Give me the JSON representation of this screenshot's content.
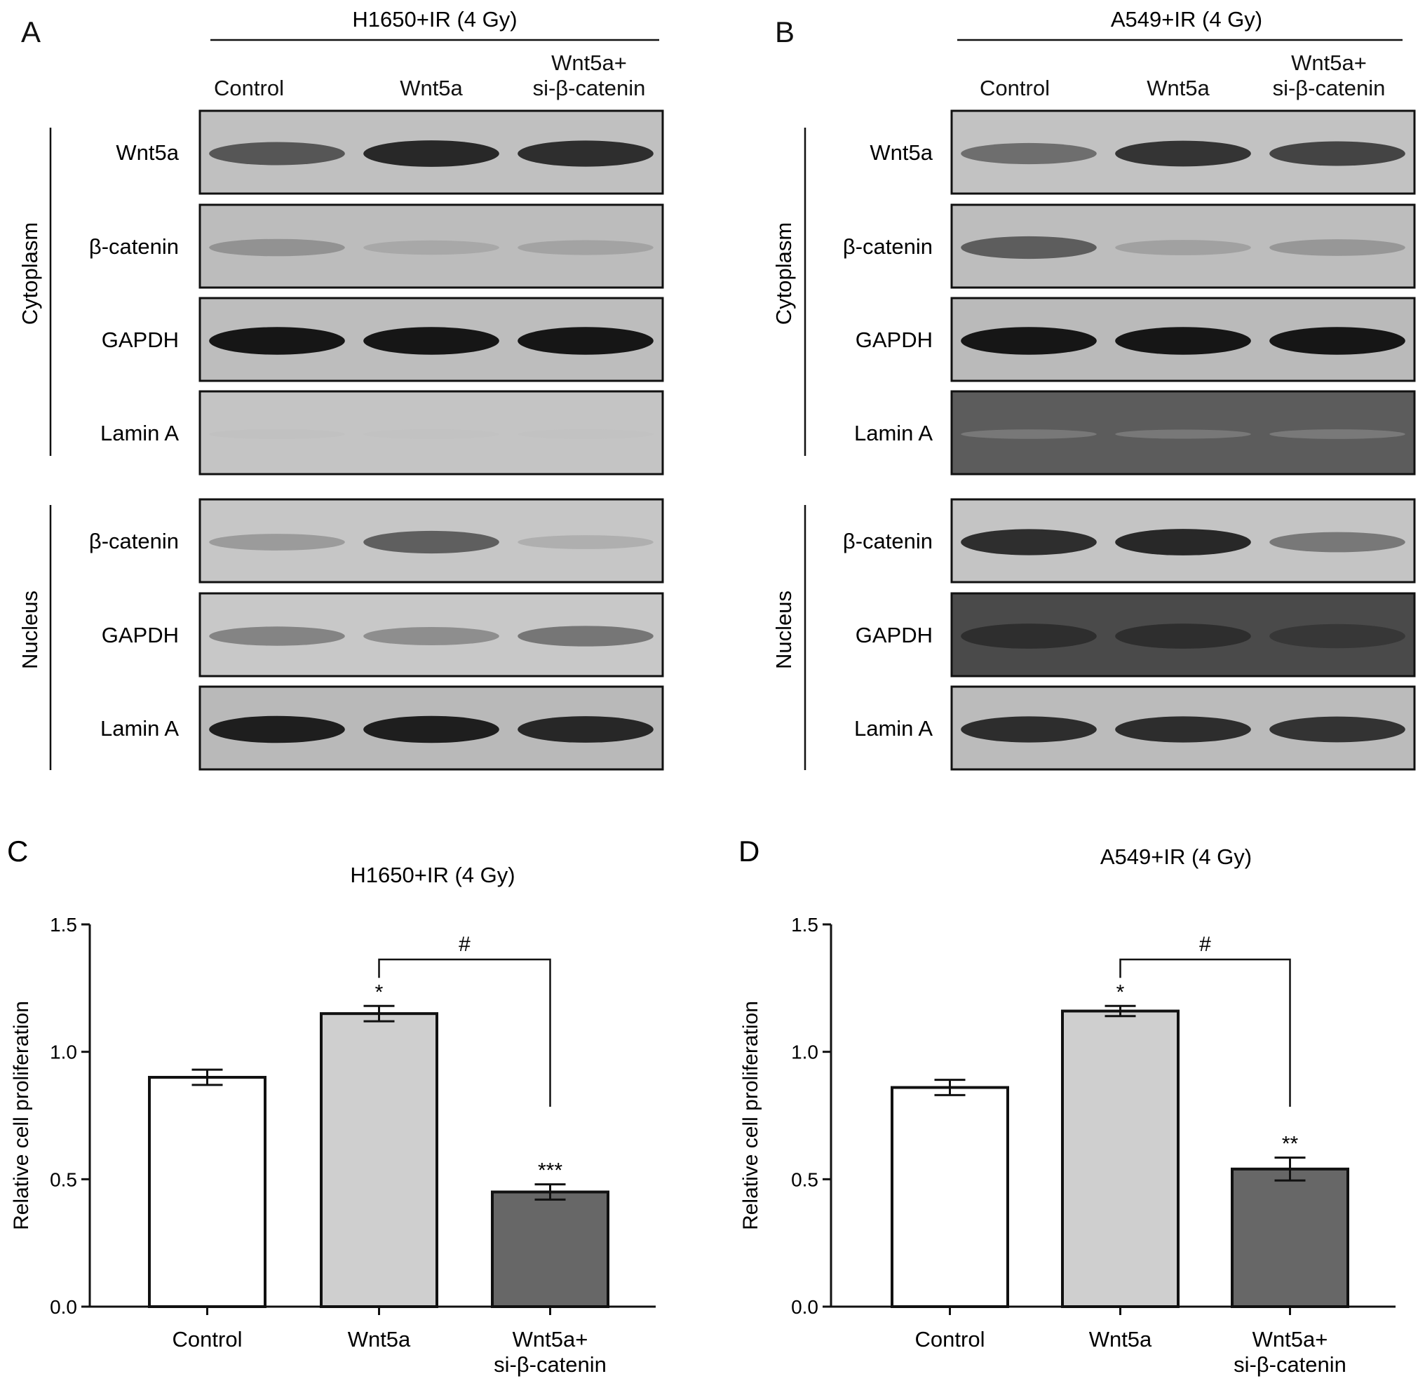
{
  "panels": {
    "A": {
      "letter": "A",
      "condition": "H1650+IR (4 Gy)",
      "columns": [
        [
          "Control"
        ],
        [
          "Wnt5a"
        ],
        [
          "Wnt5a+",
          "si-β-catenin"
        ]
      ],
      "fractions": [
        "Cytoplasm",
        "Nucleus"
      ],
      "rows": [
        "Wnt5a",
        "β-catenin",
        "GAPDH",
        "Lamin A",
        "β-catenin",
        "GAPDH",
        "Lamin A"
      ]
    },
    "B": {
      "letter": "B",
      "condition": "A549+IR (4 Gy)",
      "columns": [
        [
          "Control"
        ],
        [
          "Wnt5a"
        ],
        [
          "Wnt5a+",
          "si-β-catenin"
        ]
      ],
      "fractions": [
        "Cytoplasm",
        "Nucleus"
      ],
      "rows": [
        "Wnt5a",
        "β-catenin",
        "GAPDH",
        "Lamin A",
        "β-catenin",
        "GAPDH",
        "Lamin A"
      ]
    },
    "C": {
      "letter": "C"
    },
    "D": {
      "letter": "D"
    }
  },
  "colors": {
    "bar_fills": [
      "#ffffff",
      "#cfcfcf",
      "#676767"
    ],
    "axis": "#111111"
  },
  "chart_data": [
    {
      "type": "bar",
      "title": "H1650+IR (4 Gy)",
      "xlabel": "",
      "ylabel": "Relative cell proliferation",
      "categories": [
        [
          "Control"
        ],
        [
          "Wnt5a"
        ],
        [
          "Wnt5a+",
          "si-β-catenin"
        ]
      ],
      "values": [
        0.9,
        1.15,
        0.45
      ],
      "errors": [
        0.03,
        0.03,
        0.03
      ],
      "significance": [
        "",
        "*",
        "***"
      ],
      "comparison": {
        "from": 1,
        "to": 2,
        "label": "#"
      },
      "ylim": [
        0.0,
        1.5
      ],
      "yticks": [
        "0.0",
        "0.5",
        "1.0",
        "1.5"
      ]
    },
    {
      "type": "bar",
      "title": "A549+IR (4 Gy)",
      "xlabel": "",
      "ylabel": "Relative cell proliferation",
      "categories": [
        [
          "Control"
        ],
        [
          "Wnt5a"
        ],
        [
          "Wnt5a+",
          "si-β-catenin"
        ]
      ],
      "values": [
        0.86,
        1.16,
        0.54
      ],
      "errors": [
        0.03,
        0.02,
        0.045
      ],
      "significance": [
        "",
        "*",
        "**"
      ],
      "comparison": {
        "from": 1,
        "to": 2,
        "label": "#"
      },
      "ylim": [
        0.0,
        1.5
      ],
      "yticks": [
        "0.0",
        "0.5",
        "1.0",
        "1.5"
      ]
    }
  ]
}
